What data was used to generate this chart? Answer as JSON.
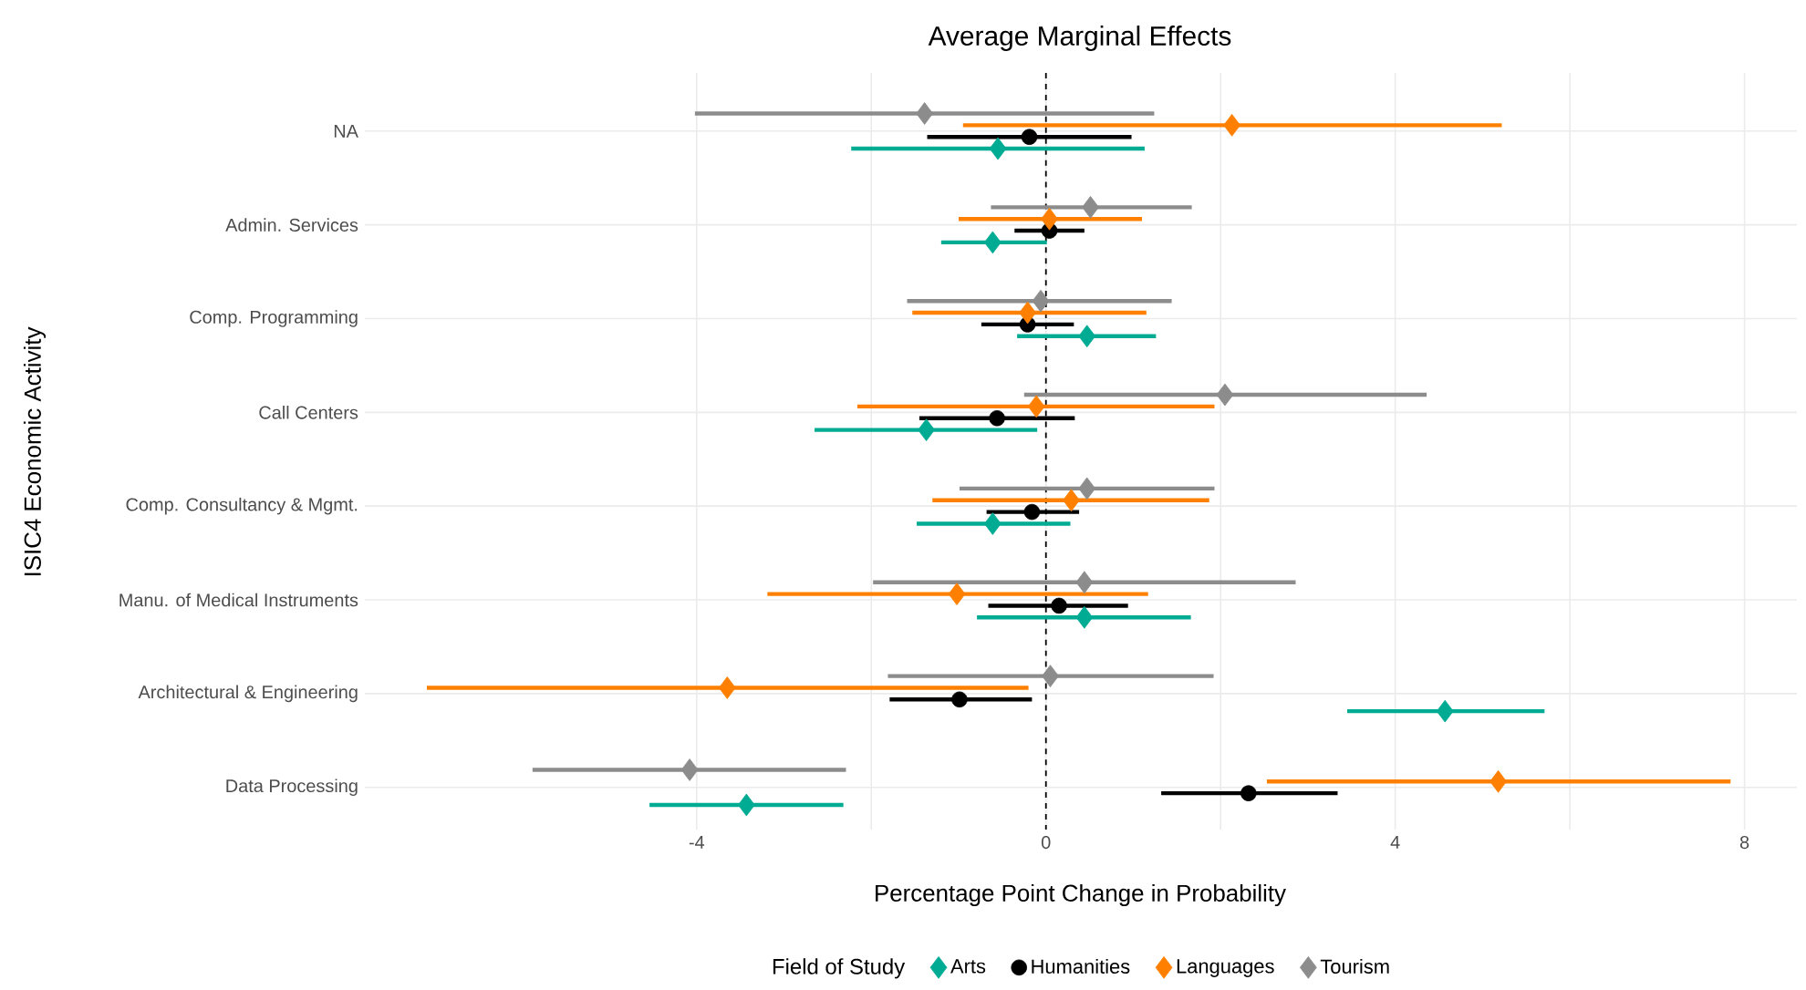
{
  "chart_data": {
    "type": "scatter",
    "orientation": "horizontal",
    "title": "Average Marginal Effects",
    "xlabel": "Percentage Point Change in Probability",
    "ylabel": "ISIC4 Economic Activity",
    "legend_title": "Field of Study",
    "legend": "bottom",
    "grid": true,
    "categories": [
      "NA",
      "Admin. Services",
      "Comp. Programming",
      "Call Centers",
      "Comp. Consultancy & Mgmt.",
      "Manu. of Medical Instruments",
      "Architectural & Engineering",
      "Data Processing"
    ],
    "xlim": [
      -7.8,
      8.6
    ],
    "xticks": [
      -4,
      0,
      4,
      8
    ],
    "ref_lines": [
      {
        "axis": "x",
        "value": 0,
        "line_style": "dashed",
        "color": "#000000"
      }
    ],
    "series": [
      {
        "name": "Arts",
        "color": "#00ab94",
        "marker": "diamond",
        "values": [
          -0.55,
          -0.61,
          0.47,
          -1.37,
          -0.61,
          0.44,
          4.57,
          -3.43
        ],
        "errors": [
          [
            -2.23,
            1.13
          ],
          [
            -1.2,
            0.01
          ],
          [
            -0.33,
            1.26
          ],
          [
            -2.65,
            -0.1
          ],
          [
            -1.48,
            0.28
          ],
          [
            -0.79,
            1.66
          ],
          [
            3.45,
            5.71
          ],
          [
            -4.54,
            -2.32
          ]
        ]
      },
      {
        "name": "Humanities",
        "color": "#000000",
        "marker": "circle",
        "values": [
          -0.19,
          0.04,
          -0.21,
          -0.56,
          -0.16,
          0.15,
          -0.99,
          2.32
        ],
        "errors": [
          [
            -1.36,
            0.98
          ],
          [
            -0.36,
            0.44
          ],
          [
            -0.74,
            0.32
          ],
          [
            -1.45,
            0.33
          ],
          [
            -0.68,
            0.38
          ],
          [
            -0.66,
            0.94
          ],
          [
            -1.79,
            -0.16
          ],
          [
            1.32,
            3.34
          ]
        ]
      },
      {
        "name": "Languages",
        "color": "#ff8000",
        "marker": "diamond",
        "values": [
          2.13,
          0.04,
          -0.21,
          -0.11,
          0.29,
          -1.02,
          -3.65,
          5.18
        ],
        "errors": [
          [
            -0.95,
            5.22
          ],
          [
            -1.0,
            1.1
          ],
          [
            -1.53,
            1.15
          ],
          [
            -2.16,
            1.93
          ],
          [
            -1.3,
            1.87
          ],
          [
            -3.19,
            1.17
          ],
          [
            -7.09,
            -0.2
          ],
          [
            2.53,
            7.84
          ]
        ]
      },
      {
        "name": "Tourism",
        "color": "#8c8c8c",
        "marker": "diamond",
        "values": [
          -1.39,
          0.51,
          -0.06,
          2.05,
          0.47,
          0.44,
          0.05,
          -4.08
        ],
        "errors": [
          [
            -4.02,
            1.24
          ],
          [
            -0.63,
            1.67
          ],
          [
            -1.59,
            1.44
          ],
          [
            -0.25,
            4.36
          ],
          [
            -0.99,
            1.93
          ],
          [
            -1.98,
            2.86
          ],
          [
            -1.81,
            1.92
          ],
          [
            -5.88,
            -2.29
          ]
        ]
      }
    ]
  }
}
